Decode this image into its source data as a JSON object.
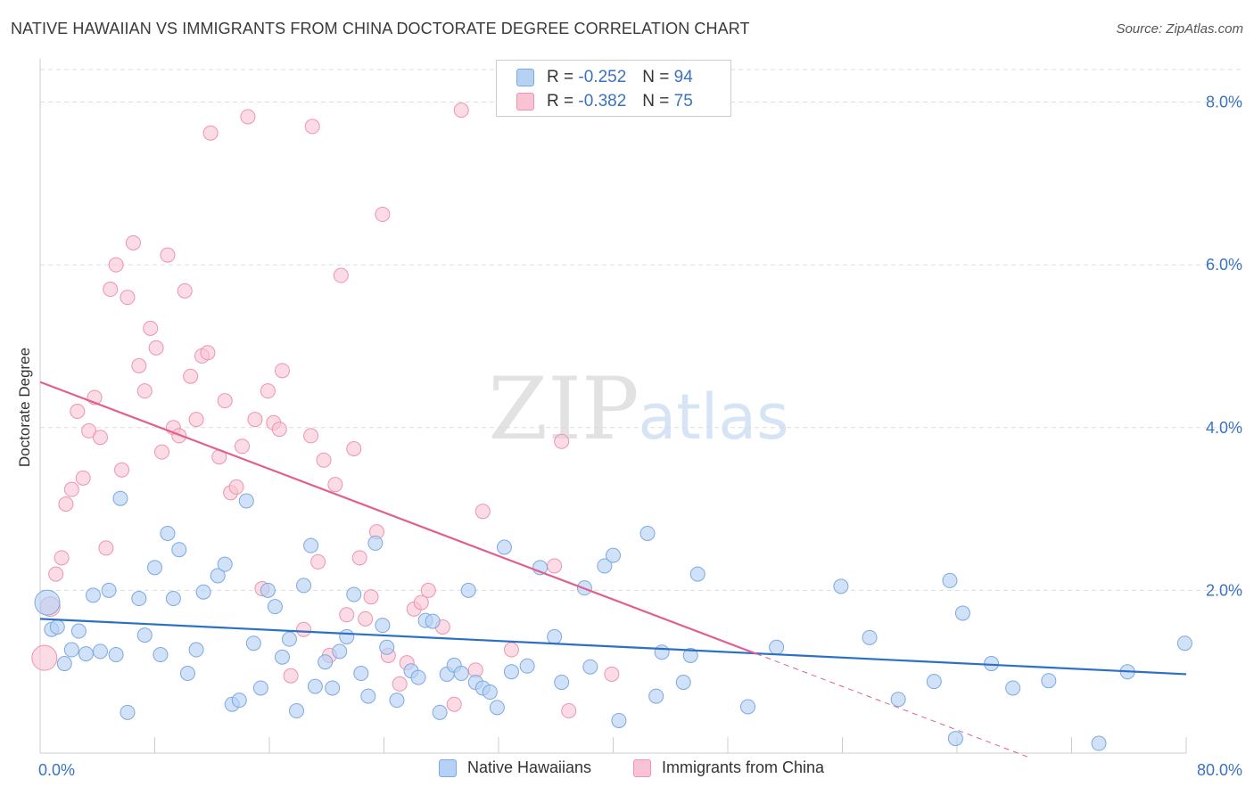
{
  "title": "NATIVE HAWAIIAN VS IMMIGRANTS FROM CHINA DOCTORATE DEGREE CORRELATION CHART",
  "source": "Source: ZipAtlas.com",
  "watermark": {
    "zip": "ZIP",
    "atlas": "atlas"
  },
  "colors": {
    "blue_fill": "#b7d1f5",
    "blue_stroke": "#7da9e0",
    "blue_line": "#2b6fc9",
    "pink_fill": "#f8c4d4",
    "pink_stroke": "#ee93b0",
    "pink_line": "#e0608e",
    "axis_text": "#3a72c4",
    "grid": "#dddddd"
  },
  "stats": [
    {
      "r_label": "R =",
      "r_value": "-0.252",
      "n_label": "N =",
      "n_value": "94",
      "series": "blue"
    },
    {
      "r_label": "R =",
      "r_value": "-0.382",
      "n_label": "N =",
      "n_value": "75",
      "series": "pink"
    }
  ],
  "legend": [
    {
      "label": "Native Hawaiians",
      "series": "blue"
    },
    {
      "label": "Immigrants from China",
      "series": "pink"
    }
  ],
  "chart_data": {
    "type": "scatter",
    "title": "NATIVE HAWAIIAN VS IMMIGRANTS FROM CHINA DOCTORATE DEGREE CORRELATION CHART",
    "xlabel": "",
    "ylabel": "Doctorate Degree",
    "xlim": [
      0,
      80
    ],
    "ylim": [
      0,
      8.4
    ],
    "x_tick_labels": [
      "0.0%",
      "80.0%"
    ],
    "y_ticks": [
      2,
      4,
      6,
      8
    ],
    "y_tick_labels": [
      "2.0%",
      "4.0%",
      "6.0%",
      "8.0%"
    ],
    "grid": true,
    "legend_position": "bottom",
    "series": [
      {
        "name": "Native Hawaiians",
        "color": "#7da9e0",
        "trend": {
          "x": [
            0,
            80
          ],
          "y": [
            1.65,
            0.97
          ]
        },
        "points": [
          [
            0.5,
            1.85
          ],
          [
            0.8,
            1.52
          ],
          [
            1.2,
            1.55
          ],
          [
            1.7,
            1.1
          ],
          [
            2.2,
            1.27
          ],
          [
            2.7,
            1.5
          ],
          [
            3.2,
            1.22
          ],
          [
            3.7,
            1.94
          ],
          [
            4.2,
            1.25
          ],
          [
            4.8,
            2.0
          ],
          [
            5.3,
            1.21
          ],
          [
            5.6,
            3.13
          ],
          [
            6.1,
            0.5
          ],
          [
            6.9,
            1.9
          ],
          [
            7.3,
            1.45
          ],
          [
            8.0,
            2.28
          ],
          [
            8.4,
            1.21
          ],
          [
            8.9,
            2.7
          ],
          [
            9.3,
            1.9
          ],
          [
            9.7,
            2.5
          ],
          [
            10.3,
            0.98
          ],
          [
            10.9,
            1.27
          ],
          [
            11.4,
            1.98
          ],
          [
            12.4,
            2.18
          ],
          [
            12.9,
            2.32
          ],
          [
            13.4,
            0.6
          ],
          [
            13.9,
            0.65
          ],
          [
            14.4,
            3.1
          ],
          [
            14.9,
            1.35
          ],
          [
            15.4,
            0.8
          ],
          [
            15.9,
            2.0
          ],
          [
            16.4,
            1.8
          ],
          [
            16.9,
            1.18
          ],
          [
            17.4,
            1.4
          ],
          [
            17.9,
            0.52
          ],
          [
            18.4,
            2.06
          ],
          [
            18.9,
            2.55
          ],
          [
            19.2,
            0.82
          ],
          [
            19.9,
            1.12
          ],
          [
            20.4,
            0.8
          ],
          [
            20.9,
            1.25
          ],
          [
            21.4,
            1.43
          ],
          [
            21.9,
            1.95
          ],
          [
            22.4,
            0.98
          ],
          [
            22.9,
            0.7
          ],
          [
            23.4,
            2.58
          ],
          [
            23.9,
            1.57
          ],
          [
            24.2,
            1.3
          ],
          [
            24.9,
            0.65
          ],
          [
            25.9,
            1.01
          ],
          [
            26.4,
            0.93
          ],
          [
            26.9,
            1.63
          ],
          [
            27.4,
            1.62
          ],
          [
            27.9,
            0.5
          ],
          [
            28.4,
            0.97
          ],
          [
            28.9,
            1.08
          ],
          [
            29.4,
            0.98
          ],
          [
            29.9,
            2.0
          ],
          [
            30.4,
            0.87
          ],
          [
            30.9,
            0.8
          ],
          [
            31.4,
            0.75
          ],
          [
            31.9,
            0.56
          ],
          [
            32.4,
            2.53
          ],
          [
            32.9,
            1.0
          ],
          [
            34.0,
            1.07
          ],
          [
            34.9,
            2.28
          ],
          [
            35.9,
            1.43
          ],
          [
            36.4,
            0.87
          ],
          [
            38.0,
            2.03
          ],
          [
            38.4,
            1.06
          ],
          [
            39.4,
            2.3
          ],
          [
            40.0,
            2.43
          ],
          [
            40.4,
            0.4
          ],
          [
            42.4,
            2.7
          ],
          [
            43.0,
            0.7
          ],
          [
            43.4,
            1.24
          ],
          [
            44.9,
            0.87
          ],
          [
            45.4,
            1.2
          ],
          [
            45.9,
            2.2
          ],
          [
            49.4,
            0.57
          ],
          [
            51.4,
            1.3
          ],
          [
            55.9,
            2.05
          ],
          [
            57.9,
            1.42
          ],
          [
            59.9,
            0.66
          ],
          [
            62.4,
            0.88
          ],
          [
            63.5,
            2.12
          ],
          [
            64.4,
            1.72
          ],
          [
            66.4,
            1.1
          ],
          [
            67.9,
            0.8
          ],
          [
            70.4,
            0.89
          ],
          [
            73.9,
            0.12
          ],
          [
            75.9,
            1.0
          ],
          [
            79.9,
            1.35
          ],
          [
            63.9,
            0.18
          ]
        ]
      },
      {
        "name": "Immigrants from China",
        "color": "#ee93b0",
        "trend": {
          "x": [
            0,
            50
          ],
          "y": [
            4.56,
            1.22
          ]
        },
        "trend_dashed": {
          "x": [
            50,
            69
          ],
          "y": [
            1.22,
            -0.05
          ]
        },
        "points": [
          [
            0.3,
            1.17
          ],
          [
            0.7,
            1.8
          ],
          [
            1.1,
            2.2
          ],
          [
            1.5,
            2.4
          ],
          [
            1.8,
            3.06
          ],
          [
            2.2,
            3.24
          ],
          [
            2.6,
            4.2
          ],
          [
            3.0,
            3.38
          ],
          [
            3.4,
            3.96
          ],
          [
            3.8,
            4.37
          ],
          [
            4.2,
            3.88
          ],
          [
            4.6,
            2.52
          ],
          [
            4.9,
            5.7
          ],
          [
            5.3,
            6.0
          ],
          [
            5.7,
            3.48
          ],
          [
            6.1,
            5.6
          ],
          [
            6.5,
            6.27
          ],
          [
            6.9,
            4.76
          ],
          [
            7.3,
            4.45
          ],
          [
            7.7,
            5.22
          ],
          [
            8.1,
            4.98
          ],
          [
            8.5,
            3.7
          ],
          [
            8.9,
            6.12
          ],
          [
            9.3,
            4.0
          ],
          [
            9.7,
            3.9
          ],
          [
            10.1,
            5.68
          ],
          [
            10.5,
            4.63
          ],
          [
            10.9,
            4.1
          ],
          [
            11.3,
            4.88
          ],
          [
            11.7,
            4.92
          ],
          [
            11.9,
            7.62
          ],
          [
            12.5,
            3.64
          ],
          [
            12.9,
            4.33
          ],
          [
            13.3,
            3.2
          ],
          [
            13.7,
            3.27
          ],
          [
            14.1,
            3.77
          ],
          [
            14.5,
            7.82
          ],
          [
            15.0,
            4.1
          ],
          [
            15.5,
            2.02
          ],
          [
            15.9,
            4.45
          ],
          [
            16.3,
            4.06
          ],
          [
            16.7,
            3.98
          ],
          [
            16.9,
            4.7
          ],
          [
            17.5,
            0.95
          ],
          [
            18.4,
            1.52
          ],
          [
            18.9,
            3.9
          ],
          [
            19.0,
            7.7
          ],
          [
            19.4,
            2.35
          ],
          [
            19.8,
            3.6
          ],
          [
            20.2,
            1.2
          ],
          [
            20.6,
            3.3
          ],
          [
            21.0,
            5.87
          ],
          [
            21.4,
            1.7
          ],
          [
            21.9,
            3.74
          ],
          [
            22.3,
            2.4
          ],
          [
            22.7,
            1.65
          ],
          [
            23.1,
            1.92
          ],
          [
            23.5,
            2.72
          ],
          [
            23.9,
            6.62
          ],
          [
            24.3,
            1.2
          ],
          [
            25.1,
            0.85
          ],
          [
            25.6,
            1.11
          ],
          [
            26.1,
            1.77
          ],
          [
            26.6,
            1.85
          ],
          [
            27.1,
            2.0
          ],
          [
            28.1,
            1.55
          ],
          [
            28.9,
            0.6
          ],
          [
            29.4,
            7.9
          ],
          [
            30.4,
            1.02
          ],
          [
            30.9,
            2.97
          ],
          [
            32.9,
            1.27
          ],
          [
            35.9,
            2.3
          ],
          [
            36.4,
            3.83
          ],
          [
            36.9,
            0.52
          ],
          [
            39.9,
            0.97
          ]
        ]
      }
    ]
  }
}
